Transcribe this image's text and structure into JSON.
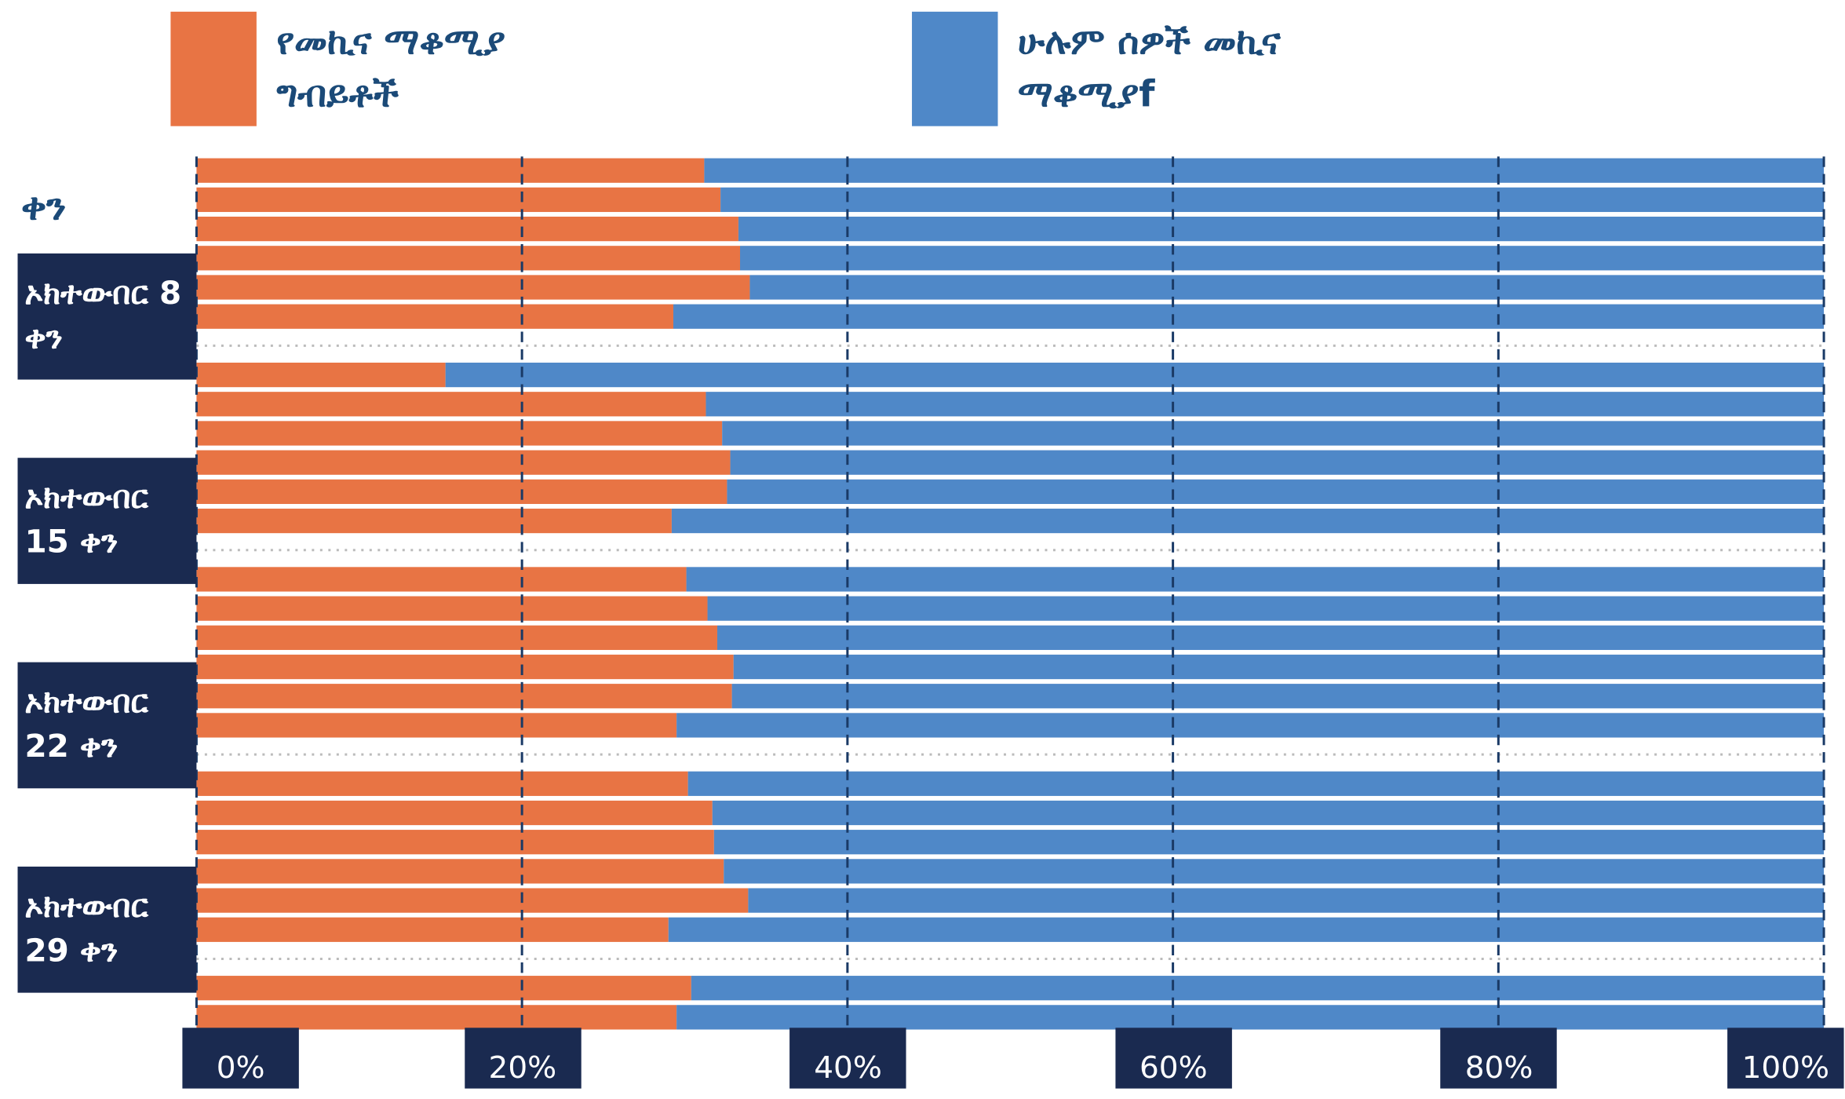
{
  "chart_data": {
    "type": "stacked_bar_horizontal",
    "y_label": "ቀን",
    "categories": [
      null,
      null,
      null,
      null,
      null,
      "ኦክተውበር 8 ቀን",
      null,
      null,
      null,
      null,
      null,
      null,
      "ኦክተውበር 15 ቀን",
      null,
      null,
      null,
      null,
      null,
      null,
      "ኦክተውበር 22 ቀን",
      null,
      null,
      null,
      null,
      null,
      null,
      "ኦክተውበር 29 ቀን",
      null,
      null,
      null
    ],
    "series": [
      {
        "name": "የመኪና ማቆሚያ ግብይቶች",
        "color": "#e87444",
        "values": [
          31.2,
          32.2,
          33.3,
          33.4,
          34.0,
          29.3,
          null,
          15.3,
          31.3,
          32.3,
          32.8,
          32.6,
          29.2,
          null,
          30.1,
          31.4,
          32.0,
          33.0,
          32.9,
          29.5,
          null,
          30.2,
          31.7,
          31.8,
          32.4,
          33.9,
          29.0,
          null,
          30.4,
          29.5
        ]
      },
      {
        "name": "ሁሉም ሰዎች መኪና ማቆሚያf",
        "color": "#4f88c8",
        "values": [
          68.8,
          67.8,
          66.7,
          66.6,
          66.0,
          70.7,
          null,
          84.7,
          68.7,
          67.7,
          67.2,
          67.4,
          70.8,
          null,
          69.9,
          68.6,
          68.0,
          67.0,
          67.1,
          70.5,
          null,
          69.8,
          68.3,
          68.2,
          67.6,
          66.1,
          71.0,
          null,
          69.6,
          70.5
        ]
      }
    ],
    "xlim": [
      0,
      100
    ],
    "xticks": [
      {
        "value": 0,
        "label": "0%"
      },
      {
        "value": 20,
        "label": "20%"
      },
      {
        "value": 40,
        "label": "40%"
      },
      {
        "value": 60,
        "label": "60%"
      },
      {
        "value": 80,
        "label": "80%"
      },
      {
        "value": 100,
        "label": "100%"
      }
    ],
    "grid": true
  }
}
